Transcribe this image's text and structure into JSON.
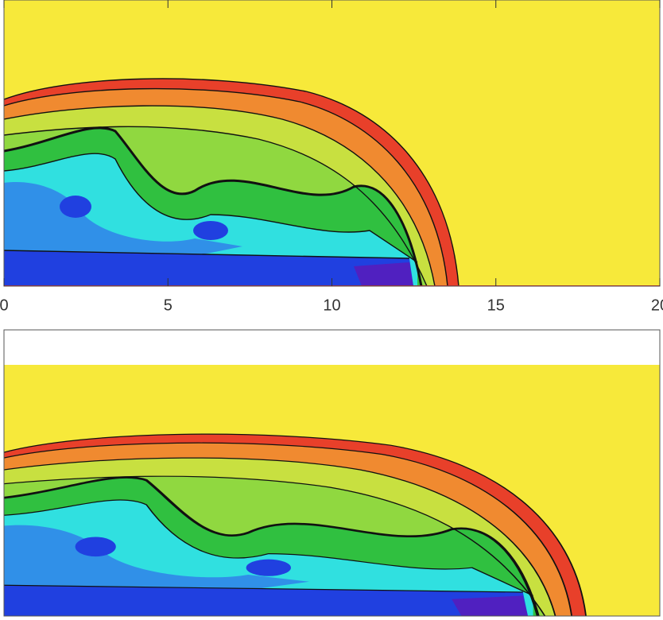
{
  "chart_data": [
    {
      "type": "contour",
      "xlim": [
        0,
        20
      ],
      "xticks": [
        0,
        5,
        10,
        15,
        20
      ]
    },
    {
      "type": "contour"
    }
  ]
}
